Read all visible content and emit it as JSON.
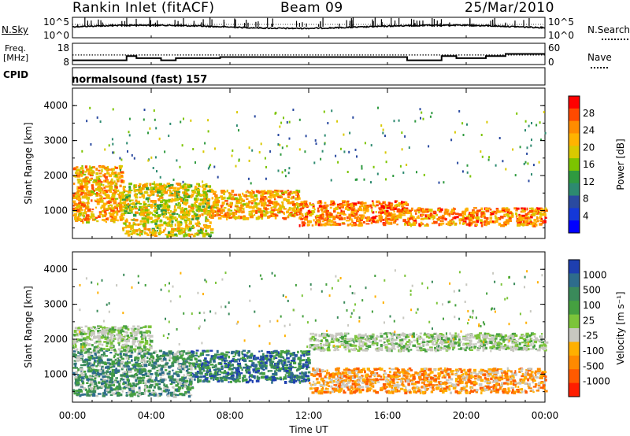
{
  "header": {
    "station": "Rankin Inlet (fitACF)",
    "beam": "Beam 09",
    "date": "25/Mar/2010"
  },
  "panel_labels": {
    "nsky": "N.Sky",
    "nsearch": "N.Search",
    "freq_top": "Freq.",
    "freq_unit": "[MHz]",
    "nave": "Nave",
    "cpid": "CPID",
    "cpid_value": "normalsound (fast) 157"
  },
  "ticks": {
    "noise_left": [
      "10^5",
      "10^0"
    ],
    "noise_right": [
      "10^5",
      "10^0"
    ],
    "freq_left": [
      "18",
      "8"
    ],
    "nave_right": [
      "60",
      "0"
    ],
    "range": [
      "1000",
      "2000",
      "3000",
      "4000"
    ],
    "time": [
      "00:00",
      "04:00",
      "08:00",
      "12:00",
      "16:00",
      "20:00",
      "00:00"
    ]
  },
  "axis_titles": {
    "range_top": "Slant Range [km]",
    "range_bottom": "Slant Range [km]",
    "x": "Time UT"
  },
  "colorbars": {
    "power": {
      "label": "Power [dB]",
      "ticks": [
        "28",
        "24",
        "20",
        "16",
        "12",
        "8",
        "4"
      ],
      "colors": [
        "#ff0000",
        "#ff4a00",
        "#ff8c00",
        "#ffb300",
        "#d9c900",
        "#7cc400",
        "#2f9a40",
        "#2d8a70",
        "#2a4aa0",
        "#1438d8",
        "#0000ff"
      ]
    },
    "velocity": {
      "label": "Velocity [m s⁻¹]",
      "ticks": [
        "1000",
        "500",
        "100",
        "25",
        "-25",
        "-100",
        "-500",
        "-1000"
      ],
      "colors": [
        "#1e3fb0",
        "#2e6c8c",
        "#3a8a5a",
        "#45a040",
        "#7cc43a",
        "#c8c8c0",
        "#ffb000",
        "#ff8a00",
        "#ff5a00",
        "#ff1e00"
      ]
    }
  },
  "chart_data": {
    "type": "heatmap",
    "x_range": [
      "00:00",
      "24:00"
    ],
    "y_range_km": [
      200,
      4500
    ],
    "frequency_MHz_segments": [
      {
        "start": "00:00",
        "end": "02:45",
        "value": 10
      },
      {
        "start": "02:45",
        "end": "03:15",
        "value": 12
      },
      {
        "start": "03:15",
        "end": "04:30",
        "value": 11
      },
      {
        "start": "04:30",
        "end": "05:15",
        "value": 10
      },
      {
        "start": "05:15",
        "end": "07:30",
        "value": 11
      },
      {
        "start": "07:30",
        "end": "17:00",
        "value": 11.5
      },
      {
        "start": "17:00",
        "end": "18:45",
        "value": 10
      },
      {
        "start": "18:45",
        "end": "19:30",
        "value": 12
      },
      {
        "start": "19:30",
        "end": "21:00",
        "value": 11
      },
      {
        "start": "21:00",
        "end": "22:00",
        "value": 12
      },
      {
        "start": "22:00",
        "end": "24:00",
        "value": 13
      }
    ],
    "power_bands": [
      {
        "start": "00:00",
        "end": "02:30",
        "range_km": [
          700,
          2300
        ],
        "level_dB": 26
      },
      {
        "start": "02:30",
        "end": "07:00",
        "range_km": [
          300,
          1800
        ],
        "level_dB": 22
      },
      {
        "start": "07:00",
        "end": "11:30",
        "range_km": [
          800,
          1600
        ],
        "level_dB": 26
      },
      {
        "start": "11:30",
        "end": "17:00",
        "range_km": [
          600,
          1300
        ],
        "level_dB": 28
      },
      {
        "start": "17:00",
        "end": "24:00",
        "range_km": [
          600,
          1100
        ],
        "level_dB": 28
      }
    ],
    "velocity_bands": [
      {
        "start": "00:00",
        "end": "06:00",
        "range_km": [
          400,
          1700
        ],
        "velocity": 50
      },
      {
        "start": "00:00",
        "end": "04:00",
        "range_km": [
          1700,
          2400
        ],
        "velocity": 0
      },
      {
        "start": "06:00",
        "end": "12:00",
        "range_km": [
          800,
          1700
        ],
        "velocity": 200
      },
      {
        "start": "12:00",
        "end": "24:00",
        "range_km": [
          500,
          1200
        ],
        "velocity": -150
      },
      {
        "start": "12:00",
        "end": "24:00",
        "range_km": [
          1700,
          2200
        ],
        "velocity": 0
      }
    ]
  }
}
